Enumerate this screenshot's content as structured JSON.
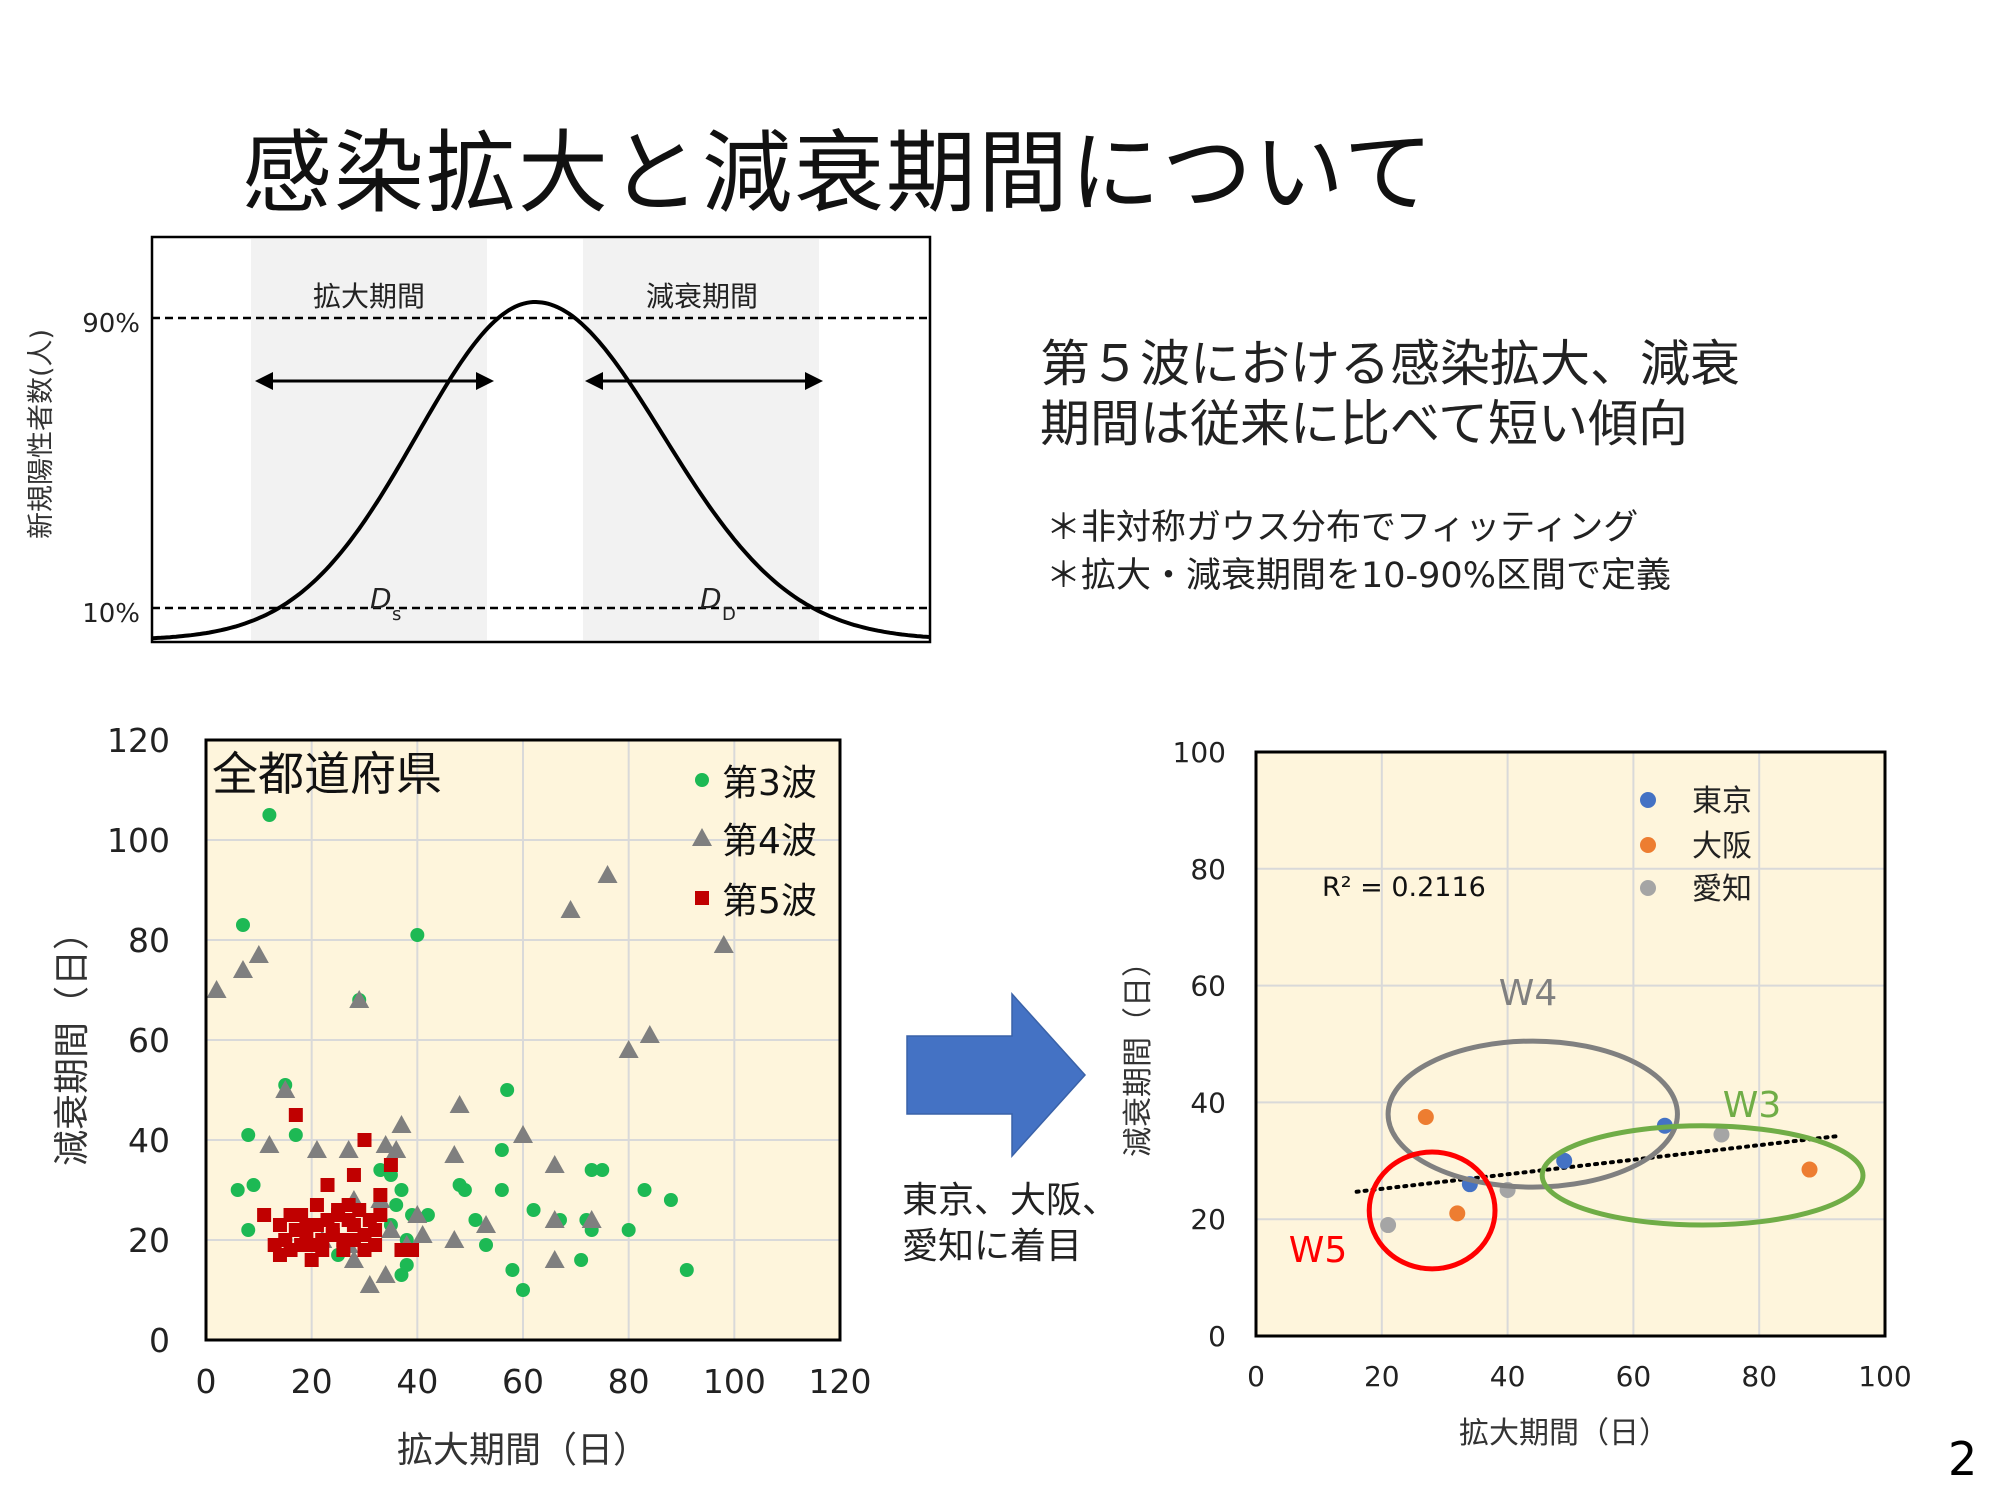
{
  "title": "感染拡大と減衰期間について",
  "headline": [
    "第５波における感染拡大、減衰",
    "期間は従来に比べて短い傾向"
  ],
  "notes": [
    "＊非対称ガウス分布でフィッティング",
    "＊拡大・減衰期間を10-90%区間で定義"
  ],
  "arrow_note": [
    "東京、大阪、",
    "愛知に着目"
  ],
  "page_number": "2",
  "colors": {
    "wave3": "#1db954",
    "wave4": "#7f7f7f",
    "wave5": "#c00000",
    "tokyo": "#4472c4",
    "osaka": "#ed7d31",
    "aichi": "#a5a5a5",
    "plot_bg": "#fef5dc",
    "arrow": "#4472c4",
    "band": "#f2f2f2",
    "circle_w4": "#808080",
    "circle_w3": "#70ad47",
    "circle_w5": "#ff0000"
  },
  "chart_data": [
    {
      "type": "line",
      "ylabel": "新規陽性者数(人)",
      "y_ticks": [
        "90%",
        "10%"
      ],
      "band_labels": [
        "拡大期間",
        "減衰期間"
      ],
      "ds_label": "D",
      "ds_sub": "s",
      "dd_label": "D",
      "dd_sub": "D"
    },
    {
      "type": "scatter",
      "annotation": "全都道府県",
      "xlabel": "拡大期間（日）",
      "ylabel": "減衰期間（日）",
      "xlim": [
        0,
        120
      ],
      "ylim": [
        0,
        120
      ],
      "x_ticks": [
        "0",
        "20",
        "40",
        "60",
        "80",
        "100",
        "120"
      ],
      "y_ticks": [
        "0",
        "20",
        "40",
        "60",
        "80",
        "100",
        "120"
      ],
      "legend_position": "top-right",
      "grid": true,
      "series": [
        {
          "name": "第3波",
          "marker": "circle",
          "points": [
            [
              12,
              105
            ],
            [
              7,
              83
            ],
            [
              40,
              81
            ],
            [
              29,
              68
            ],
            [
              15,
              51
            ],
            [
              57,
              50
            ],
            [
              8,
              41
            ],
            [
              17,
              41
            ],
            [
              6,
              30
            ],
            [
              9,
              31
            ],
            [
              8,
              22
            ],
            [
              15,
              20
            ],
            [
              19,
              19
            ],
            [
              25,
              17
            ],
            [
              33,
              34
            ],
            [
              35,
              33
            ],
            [
              37,
              30
            ],
            [
              36,
              27
            ],
            [
              35,
              23
            ],
            [
              38,
              20
            ],
            [
              37,
              13
            ],
            [
              39,
              25
            ],
            [
              42,
              25
            ],
            [
              48,
              31
            ],
            [
              49,
              30
            ],
            [
              51,
              24
            ],
            [
              53,
              19
            ],
            [
              56,
              38
            ],
            [
              56,
              30
            ],
            [
              58,
              14
            ],
            [
              60,
              10
            ],
            [
              62,
              26
            ],
            [
              67,
              24
            ],
            [
              71,
              16
            ],
            [
              72,
              24
            ],
            [
              73,
              22
            ],
            [
              73,
              34
            ],
            [
              75,
              34
            ],
            [
              80,
              22
            ],
            [
              83,
              30
            ],
            [
              88,
              28
            ],
            [
              91,
              14
            ],
            [
              38,
              15
            ]
          ]
        },
        {
          "name": "第4波",
          "marker": "triangle",
          "points": [
            [
              2,
              70
            ],
            [
              7,
              74
            ],
            [
              10,
              77
            ],
            [
              29,
              68
            ],
            [
              76,
              93
            ],
            [
              69,
              86
            ],
            [
              98,
              79
            ],
            [
              84,
              61
            ],
            [
              80,
              58
            ],
            [
              15,
              50
            ],
            [
              48,
              47
            ],
            [
              60,
              41
            ],
            [
              37,
              43
            ],
            [
              36,
              38
            ],
            [
              12,
              39
            ],
            [
              21,
              38
            ],
            [
              27,
              38
            ],
            [
              34,
              39
            ],
            [
              47,
              37
            ],
            [
              66,
              35
            ],
            [
              28,
              28
            ],
            [
              33,
              28
            ],
            [
              35,
              22
            ],
            [
              40,
              25
            ],
            [
              38,
              19
            ],
            [
              41,
              21
            ],
            [
              47,
              20
            ],
            [
              53,
              23
            ],
            [
              66,
              24
            ],
            [
              73,
              24
            ],
            [
              66,
              16
            ],
            [
              31,
              11
            ],
            [
              34,
              13
            ],
            [
              28,
              16
            ],
            [
              22,
              20
            ],
            [
              27,
              19
            ]
          ]
        },
        {
          "name": "第5波",
          "marker": "square",
          "points": [
            [
              17,
              45
            ],
            [
              35,
              35
            ],
            [
              30,
              40
            ],
            [
              23,
              31
            ],
            [
              28,
              33
            ],
            [
              33,
              29
            ],
            [
              11,
              25
            ],
            [
              14,
              23
            ],
            [
              16,
              25
            ],
            [
              17,
              22
            ],
            [
              18,
              25
            ],
            [
              19,
              21
            ],
            [
              20,
              19
            ],
            [
              21,
              23
            ],
            [
              22,
              18
            ],
            [
              23,
              24
            ],
            [
              24,
              22
            ],
            [
              25,
              25
            ],
            [
              26,
              20
            ],
            [
              27,
              27
            ],
            [
              28,
              23
            ],
            [
              29,
              26
            ],
            [
              30,
              21
            ],
            [
              31,
              24
            ],
            [
              32,
              22
            ],
            [
              33,
              25
            ],
            [
              14,
              17
            ],
            [
              15,
              20
            ],
            [
              16,
              18
            ],
            [
              18,
              19
            ],
            [
              20,
              16
            ],
            [
              22,
              20
            ],
            [
              24,
              21
            ],
            [
              26,
              18
            ],
            [
              28,
              20
            ],
            [
              30,
              18
            ],
            [
              32,
              19
            ],
            [
              25,
              26
            ],
            [
              27,
              24
            ],
            [
              19,
              23
            ],
            [
              21,
              27
            ],
            [
              39,
              18
            ],
            [
              37,
              18
            ],
            [
              13,
              19
            ]
          ]
        }
      ]
    },
    {
      "type": "scatter",
      "xlabel": "拡大期間（日）",
      "ylabel": "減衰期間（日）",
      "xlim": [
        0,
        100
      ],
      "ylim": [
        0,
        100
      ],
      "x_ticks": [
        "0",
        "20",
        "40",
        "60",
        "80",
        "100"
      ],
      "y_ticks": [
        "0",
        "20",
        "40",
        "60",
        "80",
        "100"
      ],
      "legend_position": "top-right",
      "grid": true,
      "r2_label": "R² = 0.2116",
      "trendline": [
        [
          16,
          24.7
        ],
        [
          93,
          34.3
        ]
      ],
      "series": [
        {
          "name": "東京",
          "marker": "circle",
          "points": [
            [
              65,
              36
            ],
            [
              49,
              30
            ],
            [
              34,
              26
            ]
          ]
        },
        {
          "name": "大阪",
          "marker": "circle",
          "points": [
            [
              27,
              37.5
            ],
            [
              88,
              28.5
            ],
            [
              32,
              21
            ]
          ]
        },
        {
          "name": "愛知",
          "marker": "circle",
          "points": [
            [
              74,
              34.5
            ],
            [
              40,
              25
            ],
            [
              21,
              19
            ]
          ]
        }
      ],
      "ellipses": [
        {
          "label": "W4",
          "cx": 44,
          "cy": 38,
          "rx": 23,
          "ry": 12.5
        },
        {
          "label": "W3",
          "cx": 71,
          "cy": 27.5,
          "rx": 25.5,
          "ry": 8.5
        },
        {
          "label": "W5",
          "cx": 28,
          "cy": 21.5,
          "rx": 10,
          "ry": 10
        }
      ]
    }
  ]
}
